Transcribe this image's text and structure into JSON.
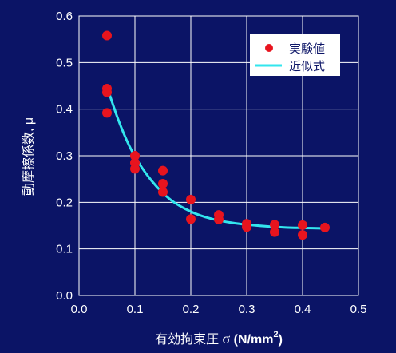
{
  "colors": {
    "background": "#0b1466",
    "plot_border": "#ffffff",
    "grid": "#ffffff",
    "experimental": "#e8141e",
    "fit": "#33e6ee",
    "legend_bg": "#ffffff",
    "legend_text": "#0b1466",
    "text": "#ffffff"
  },
  "chart_data": {
    "type": "scatter",
    "title": "",
    "xlabel": "有効拘束圧 σ (N/mm²)",
    "xlabel_main": "有効拘束圧 ",
    "xlabel_sigma": "σ",
    "xlabel_unit": " (N/mm",
    "xlabel_sup": "2",
    "xlabel_close": ")",
    "ylabel": "動摩擦係数, μ",
    "xlim": [
      0.0,
      0.5
    ],
    "ylim": [
      0.0,
      0.6
    ],
    "xticks": [
      "0.0",
      "0.1",
      "0.2",
      "0.3",
      "0.4",
      "0.5"
    ],
    "yticks": [
      "0.0",
      "0.1",
      "0.2",
      "0.3",
      "0.4",
      "0.5",
      "0.6"
    ],
    "grid": true,
    "legend_position": "top-right",
    "series": [
      {
        "name": "実験値",
        "kind": "scatter",
        "points": [
          [
            0.05,
            0.558
          ],
          [
            0.05,
            0.444
          ],
          [
            0.05,
            0.436
          ],
          [
            0.05,
            0.392
          ],
          [
            0.1,
            0.3
          ],
          [
            0.1,
            0.285
          ],
          [
            0.1,
            0.272
          ],
          [
            0.15,
            0.268
          ],
          [
            0.15,
            0.24
          ],
          [
            0.15,
            0.222
          ],
          [
            0.2,
            0.206
          ],
          [
            0.2,
            0.164
          ],
          [
            0.25,
            0.173
          ],
          [
            0.25,
            0.163
          ],
          [
            0.3,
            0.154
          ],
          [
            0.3,
            0.147
          ],
          [
            0.35,
            0.152
          ],
          [
            0.35,
            0.136
          ],
          [
            0.4,
            0.151
          ],
          [
            0.4,
            0.13
          ],
          [
            0.44,
            0.146
          ]
        ]
      },
      {
        "name": "近似式",
        "kind": "line",
        "points": [
          [
            0.05,
            0.448
          ],
          [
            0.07,
            0.378
          ],
          [
            0.09,
            0.321
          ],
          [
            0.11,
            0.279
          ],
          [
            0.13,
            0.246
          ],
          [
            0.15,
            0.22
          ],
          [
            0.17,
            0.2
          ],
          [
            0.19,
            0.186
          ],
          [
            0.21,
            0.175
          ],
          [
            0.23,
            0.167
          ],
          [
            0.25,
            0.161
          ],
          [
            0.28,
            0.155
          ],
          [
            0.31,
            0.151
          ],
          [
            0.34,
            0.148
          ],
          [
            0.37,
            0.146
          ],
          [
            0.4,
            0.145
          ],
          [
            0.44,
            0.144
          ]
        ]
      }
    ]
  }
}
